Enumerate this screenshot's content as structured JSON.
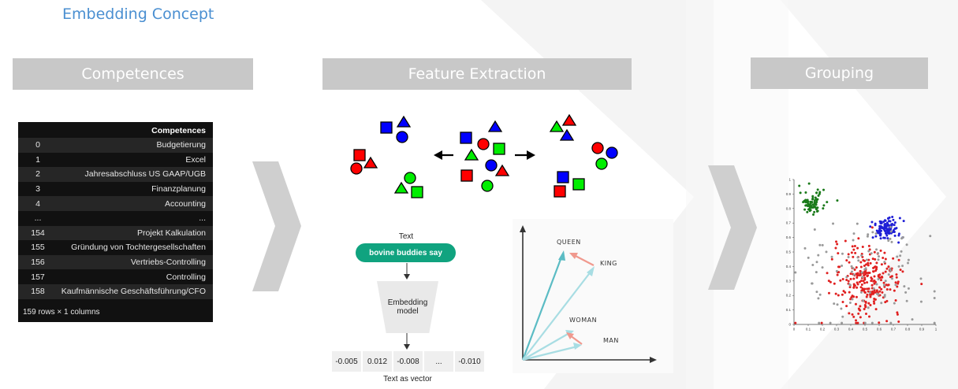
{
  "page": {
    "title": "Embedding Concept"
  },
  "headers": {
    "competences": "Competences",
    "feature_extraction": "Feature Extraction",
    "grouping": "Grouping"
  },
  "table": {
    "header": "Competences",
    "rows": [
      {
        "idx": "0",
        "value": "Budgetierung"
      },
      {
        "idx": "1",
        "value": "Excel"
      },
      {
        "idx": "2",
        "value": "Jahresabschluss US GAAP/UGB"
      },
      {
        "idx": "3",
        "value": "Finanzplanung"
      },
      {
        "idx": "4",
        "value": "Accounting"
      },
      {
        "idx": "...",
        "value": "..."
      },
      {
        "idx": "154",
        "value": "Projekt Kalkulation"
      },
      {
        "idx": "155",
        "value": "Gründung von Tochtergesellschaften"
      },
      {
        "idx": "156",
        "value": "Vertriebs-Controlling"
      },
      {
        "idx": "157",
        "value": "Controlling"
      },
      {
        "idx": "158",
        "value": "Kaufmännische Geschäftsführung/CFO"
      }
    ],
    "footer": "159 rows × 1 columns"
  },
  "embedding": {
    "text_label": "Text",
    "input_text": "bovine buddies say",
    "model_label_1": "Embedding",
    "model_label_2": "model",
    "vector": [
      "-0.005",
      "0.012",
      "-0.008",
      "...",
      "-0.010"
    ],
    "vector_label": "Text as vector"
  },
  "word_vectors": {
    "labels": [
      "QUEEN",
      "KING",
      "WOMAN",
      "MAN"
    ],
    "colors": {
      "teal": "#5bbcc4",
      "light": "#a8dde3",
      "salmon": "#f0998e"
    }
  },
  "shape_colors": {
    "red": "#ff0000",
    "green": "#00ee00",
    "blue": "#0000ff"
  },
  "chart_data": {
    "type": "scatter",
    "x_ticks": [
      "0",
      "0.1",
      "0.2",
      "0.3",
      "0.4",
      "0.5",
      "0.6",
      "0.7",
      "0.8",
      "0.9",
      "1"
    ],
    "y_ticks": [
      "0",
      "0.1",
      "0.2",
      "0.3",
      "0.4",
      "0.5",
      "0.6",
      "0.7",
      "0.8",
      "0.9",
      "1"
    ],
    "xlim": [
      0,
      1
    ],
    "ylim": [
      0,
      1
    ],
    "clusters": [
      {
        "color": "#1a7a1a",
        "center": [
          0.13,
          0.84
        ],
        "spread": [
          0.045,
          0.04
        ],
        "count": 70
      },
      {
        "color": "#1f1fd6",
        "center": [
          0.65,
          0.66
        ],
        "spread": [
          0.05,
          0.04
        ],
        "count": 110
      },
      {
        "color": "#e02020",
        "center": [
          0.52,
          0.3
        ],
        "spread": [
          0.12,
          0.12
        ],
        "count": 260
      },
      {
        "color": "#9a9a9a",
        "center": [
          0.5,
          0.35
        ],
        "spread": [
          0.25,
          0.22
        ],
        "count": 110
      }
    ]
  }
}
